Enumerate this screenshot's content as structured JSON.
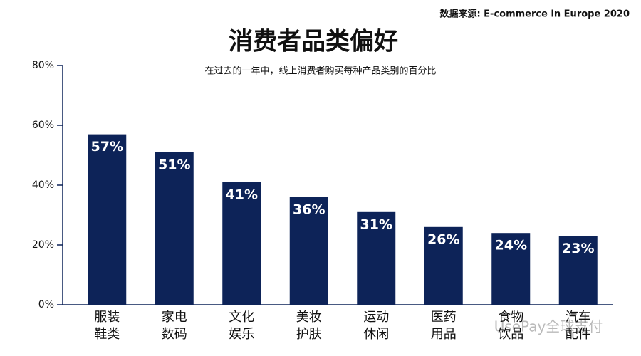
{
  "chart_data": {
    "type": "bar",
    "source": "数据来源: E-commerce in Europe 2020",
    "title": "消费者品类偏好",
    "subtitle": "在过去的一年中，线上消费者购买每种产品类别的百分比",
    "categories": [
      "服装\n鞋类",
      "家电\n数码",
      "文化\n娱乐",
      "美妆\n护肤",
      "运动\n休闲",
      "医药\n用品",
      "食物\n饮品",
      "汽车\n配件"
    ],
    "values": [
      57,
      51,
      41,
      36,
      31,
      26,
      24,
      23
    ],
    "value_labels": [
      "57%",
      "51%",
      "41%",
      "36%",
      "31%",
      "26%",
      "24%",
      "23%"
    ],
    "color": "#0d2358",
    "ylim": [
      0,
      80
    ],
    "yticks": [
      {
        "value": 0,
        "label": "0%"
      },
      {
        "value": 20,
        "label": "20%"
      },
      {
        "value": 40,
        "label": "40%"
      },
      {
        "value": 60,
        "label": "60%"
      },
      {
        "value": 80,
        "label": "80%"
      }
    ],
    "watermark": "UsePay全球支付"
  }
}
